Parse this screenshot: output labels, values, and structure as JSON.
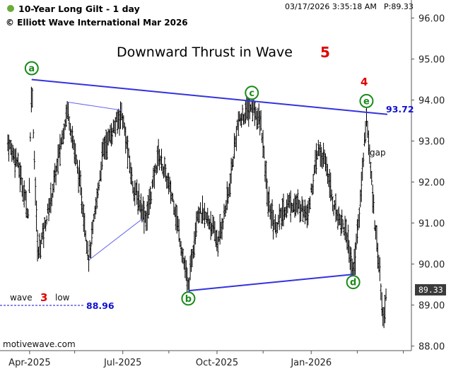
{
  "header": {
    "title": "10-Year Long Gilt - 1 day",
    "copyright": "© Elliott Wave International Mar 2026",
    "timestamp": "03/17/2026 3:35:18 AM",
    "last_price_label": "P:89.33",
    "status_dot_color": "#6aab3a"
  },
  "headline": {
    "text": "Downward Thrust in Wave",
    "wave": "5"
  },
  "footer": {
    "source": "motivewave.com"
  },
  "price_box": {
    "value": "89.33"
  },
  "wave3_note": {
    "prefix": "wave",
    "number": "3",
    "suffix": "low",
    "level": "88.96"
  },
  "trendline_value": "93.72",
  "gap_label": "gap",
  "wave4_label": "4",
  "colors": {
    "wave_circle": "#1a8a1a",
    "trendline": "#3333dd",
    "highlight": "#e00000",
    "bars": "#000000"
  },
  "chart_data": {
    "type": "ohlc-bar",
    "title": "10-Year Long Gilt - 1 day",
    "subtitle": "Downward Thrust in Wave 5",
    "ylim": [
      88,
      96
    ],
    "y_ticks": [
      "88.00",
      "89.00",
      "90.00",
      "91.00",
      "92.00",
      "93.00",
      "94.00",
      "95.00",
      "96.00"
    ],
    "x_ticks": [
      "Apr-2025",
      "Jul-2025",
      "Oct-2025",
      "Jan-2026"
    ],
    "approx_close_path": [
      [
        "2025-03-10",
        93.0
      ],
      [
        "2025-03-20",
        92.5
      ],
      [
        "2025-03-31",
        91.2
      ],
      [
        "2025-04-03",
        94.5
      ],
      [
        "2025-04-09",
        90.2
      ],
      [
        "2025-04-22",
        91.6
      ],
      [
        "2025-05-08",
        93.8
      ],
      [
        "2025-05-20",
        92.0
      ],
      [
        "2025-05-29",
        90.1
      ],
      [
        "2025-06-12",
        92.8
      ],
      [
        "2025-06-30",
        93.7
      ],
      [
        "2025-07-11",
        91.9
      ],
      [
        "2025-07-24",
        91.1
      ],
      [
        "2025-08-05",
        92.7
      ],
      [
        "2025-08-20",
        91.5
      ],
      [
        "2025-09-03",
        89.4
      ],
      [
        "2025-09-12",
        91.3
      ],
      [
        "2025-09-25",
        91.0
      ],
      [
        "2025-10-02",
        90.5
      ],
      [
        "2025-10-13",
        91.8
      ],
      [
        "2025-10-21",
        93.4
      ],
      [
        "2025-11-04",
        93.9
      ],
      [
        "2025-11-13",
        93.4
      ],
      [
        "2025-11-20",
        91.5
      ],
      [
        "2025-11-27",
        90.9
      ],
      [
        "2025-12-10",
        91.5
      ],
      [
        "2025-12-29",
        91.3
      ],
      [
        "2026-01-08",
        92.8
      ],
      [
        "2026-01-16",
        92.4
      ],
      [
        "2026-01-23",
        91.4
      ],
      [
        "2026-02-04",
        90.8
      ],
      [
        "2026-02-11",
        89.8
      ],
      [
        "2026-02-17",
        91.2
      ],
      [
        "2026-02-24",
        93.7
      ],
      [
        "2026-02-27",
        92.6
      ],
      [
        "2026-03-04",
        91.1
      ],
      [
        "2026-03-09",
        89.8
      ],
      [
        "2026-03-12",
        88.6
      ],
      [
        "2026-03-16",
        89.33
      ]
    ],
    "waves": [
      {
        "label": "a",
        "date": "2025-04-03",
        "price": 94.5
      },
      {
        "label": "b",
        "date": "2025-09-03",
        "price": 89.4
      },
      {
        "label": "c",
        "date": "2025-11-04",
        "price": 93.9
      },
      {
        "label": "d",
        "date": "2026-02-11",
        "price": 89.8
      },
      {
        "label": "e",
        "date": "2026-02-24",
        "price": 93.7
      }
    ],
    "annotations": [
      {
        "text": "93.72",
        "kind": "upper trendline value"
      },
      {
        "text": "88.96",
        "kind": "wave 3 low"
      },
      {
        "text": "gap"
      },
      {
        "text": "4"
      },
      {
        "text": "89.33",
        "kind": "last price"
      }
    ]
  }
}
